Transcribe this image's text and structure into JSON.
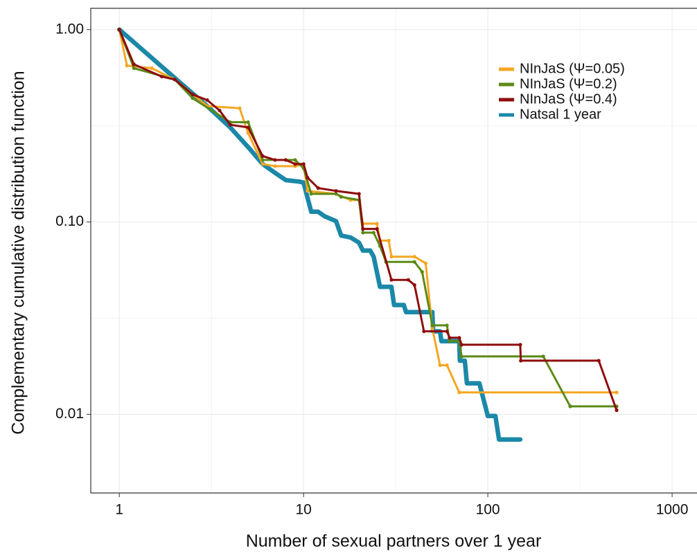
{
  "chart_data": {
    "type": "line",
    "xlabel": "Number of sexual partners over 1 year",
    "ylabel": "Complementary cumulative distribution function",
    "log_x": true,
    "log_y": true,
    "grid": true,
    "legend": "top-right",
    "xlim": [
      0.7,
      1365
    ],
    "ylim": [
      0.0039,
      1.29
    ],
    "xticks": [
      1,
      10,
      100,
      1000
    ],
    "yticks": [
      {
        "value": 1,
        "label": "1.00"
      },
      {
        "value": 0.1,
        "label": "0.10"
      },
      {
        "value": 0.01,
        "label": "0.01"
      }
    ],
    "series": [
      {
        "name": "NInJaS (Ψ=0.05)",
        "color": "#f5a623",
        "markers": true,
        "x": [
          1,
          1.1,
          1.5,
          2,
          3,
          4.5,
          5,
          6,
          7,
          9,
          10,
          10.5,
          15,
          18,
          20,
          21,
          25,
          26,
          29,
          30,
          40,
          46,
          50,
          55,
          60,
          70,
          500
        ],
        "values": [
          1,
          0.65,
          0.63,
          0.55,
          0.4,
          0.39,
          0.29,
          0.2,
          0.195,
          0.195,
          0.2,
          0.145,
          0.14,
          0.13,
          0.13,
          0.098,
          0.098,
          0.08,
          0.08,
          0.066,
          0.066,
          0.061,
          0.028,
          0.018,
          0.018,
          0.013,
          0.013
        ]
      },
      {
        "name": "NInJaS (Ψ=0.2)",
        "color": "#5b8a16",
        "markers": true,
        "x": [
          1,
          1.2,
          2,
          2.5,
          4,
          5,
          6,
          9,
          10,
          11,
          15,
          16,
          20,
          21,
          24,
          26,
          28,
          40,
          44,
          50,
          60,
          62,
          70,
          72,
          200,
          280,
          500
        ],
        "values": [
          1,
          0.63,
          0.55,
          0.44,
          0.33,
          0.33,
          0.21,
          0.21,
          0.19,
          0.14,
          0.14,
          0.135,
          0.13,
          0.088,
          0.088,
          0.075,
          0.062,
          0.062,
          0.055,
          0.029,
          0.029,
          0.024,
          0.024,
          0.02,
          0.02,
          0.011,
          0.011
        ]
      },
      {
        "name": "NInJaS (Ψ=0.4)",
        "color": "#8e0c0c",
        "markers": true,
        "x": [
          1,
          1.2,
          1.7,
          2,
          2.5,
          3,
          3.5,
          4,
          5,
          6,
          7,
          8,
          9,
          10,
          10.5,
          12,
          15,
          20,
          21,
          25,
          30,
          37,
          40,
          45,
          60,
          62,
          70,
          72,
          150,
          151,
          400,
          500
        ],
        "values": [
          1,
          0.66,
          0.57,
          0.55,
          0.46,
          0.43,
          0.38,
          0.32,
          0.31,
          0.22,
          0.21,
          0.21,
          0.2,
          0.2,
          0.17,
          0.15,
          0.145,
          0.14,
          0.092,
          0.092,
          0.05,
          0.05,
          0.047,
          0.027,
          0.027,
          0.025,
          0.025,
          0.023,
          0.023,
          0.019,
          0.019,
          0.0105
        ]
      },
      {
        "name": "Natsal 1 year",
        "color": "#1b88a8",
        "markers": false,
        "x": [
          1,
          2,
          3,
          4,
          5,
          6,
          7,
          8,
          9.5,
          10,
          11,
          12,
          13,
          15,
          16,
          18,
          20,
          21,
          23,
          24,
          26,
          30,
          31,
          35,
          36,
          50,
          50.5,
          55,
          56,
          70,
          70.5,
          75,
          77,
          90,
          100,
          110,
          115,
          150
        ],
        "values": [
          1,
          0.56,
          0.4,
          0.31,
          0.245,
          0.2,
          0.18,
          0.165,
          0.162,
          0.16,
          0.113,
          0.113,
          0.107,
          0.101,
          0.085,
          0.083,
          0.078,
          0.071,
          0.071,
          0.066,
          0.046,
          0.046,
          0.037,
          0.037,
          0.034,
          0.034,
          0.027,
          0.027,
          0.024,
          0.024,
          0.019,
          0.019,
          0.0145,
          0.0145,
          0.0098,
          0.0098,
          0.0074,
          0.0074
        ]
      }
    ]
  }
}
